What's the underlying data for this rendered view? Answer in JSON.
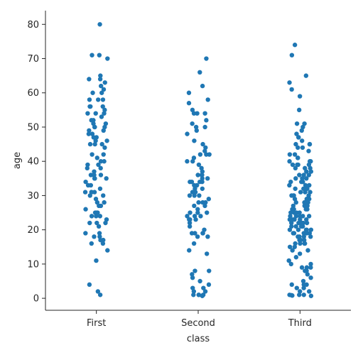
{
  "chart_data": {
    "type": "scatter",
    "subtype": "strip",
    "title": "",
    "xlabel": "class",
    "ylabel": "age",
    "ylim": [
      -3.5,
      84
    ],
    "yticks": [
      0,
      10,
      20,
      30,
      40,
      50,
      60,
      70,
      80
    ],
    "grid": false,
    "legend": "none",
    "colors": {
      "point": "#1f77b4",
      "axis": "#262626"
    },
    "categories": [
      "First",
      "Second",
      "Third"
    ],
    "series": [
      {
        "category": "First",
        "values": [
          80,
          71,
          71,
          70,
          65,
          64,
          64,
          63,
          62,
          61,
          60,
          60,
          58,
          58,
          58,
          56,
          56,
          56,
          55,
          54,
          54,
          54,
          53,
          52,
          52,
          51,
          51,
          50,
          50,
          50,
          49,
          49,
          48,
          48,
          47,
          47,
          46,
          46,
          45,
          45,
          45,
          44,
          42,
          42,
          41,
          40,
          40,
          39,
          39,
          38,
          38,
          37,
          36,
          36,
          36,
          36,
          35,
          35,
          35,
          34,
          33,
          33,
          32,
          31,
          31,
          31,
          31,
          30,
          30,
          29,
          28,
          28,
          27,
          27,
          26,
          25,
          25,
          25,
          24,
          24,
          24,
          23,
          22,
          22,
          22,
          21,
          19,
          19,
          18,
          18,
          17,
          17,
          16,
          16,
          14,
          11,
          4,
          2,
          1
        ]
      },
      {
        "category": "Second",
        "values": [
          70,
          66,
          62,
          60,
          58,
          57,
          55,
          54,
          54,
          54,
          52,
          51,
          50,
          50,
          49,
          48,
          46,
          45,
          44,
          43,
          42,
          42,
          42,
          41,
          40,
          40,
          39,
          38,
          37,
          36,
          36,
          36,
          35,
          35,
          34,
          34,
          34,
          34,
          33,
          33,
          32,
          32,
          31,
          31,
          30,
          30,
          30,
          29,
          28,
          28,
          28,
          27,
          27,
          26,
          25,
          25,
          25,
          24,
          24,
          24,
          23,
          23,
          23,
          22,
          21,
          20,
          19,
          19,
          19,
          19,
          18,
          18,
          16,
          14,
          13,
          8,
          8,
          7,
          6,
          5,
          4,
          3,
          3,
          2,
          2,
          1,
          1,
          1,
          1,
          0.8,
          0.7
        ]
      },
      {
        "category": "Third",
        "values": [
          74,
          71,
          65,
          63,
          61,
          59,
          55,
          51,
          51,
          50,
          49,
          48,
          47,
          47,
          46,
          45,
          45,
          45,
          44,
          44,
          43,
          42,
          42,
          41,
          41,
          40,
          40,
          40,
          39,
          39,
          39,
          39,
          38,
          38,
          38,
          37,
          37,
          36,
          36,
          36,
          35,
          35,
          35,
          34,
          34,
          34,
          33,
          33,
          33,
          32,
          32,
          32,
          31,
          31,
          31,
          30,
          30,
          30,
          30,
          29,
          29,
          29,
          28,
          28,
          28,
          28,
          27,
          27,
          27,
          26,
          26,
          26,
          26,
          25,
          25,
          25,
          25,
          24,
          24,
          24,
          24,
          24,
          23,
          23,
          23,
          23,
          23,
          22,
          22,
          22,
          22,
          22,
          22,
          21,
          21,
          21,
          21,
          21,
          20,
          20,
          20,
          20,
          20,
          19,
          19,
          19,
          19,
          19,
          18,
          18,
          18,
          18,
          17,
          17,
          17,
          16,
          16,
          16,
          16,
          15,
          15,
          14,
          14,
          13,
          12,
          11,
          10,
          10,
          9,
          9,
          9,
          8,
          8,
          7,
          6,
          5,
          4,
          4,
          4,
          3,
          3,
          2,
          2,
          1,
          1,
          1,
          0.9,
          0.8,
          0.7
        ]
      }
    ]
  }
}
